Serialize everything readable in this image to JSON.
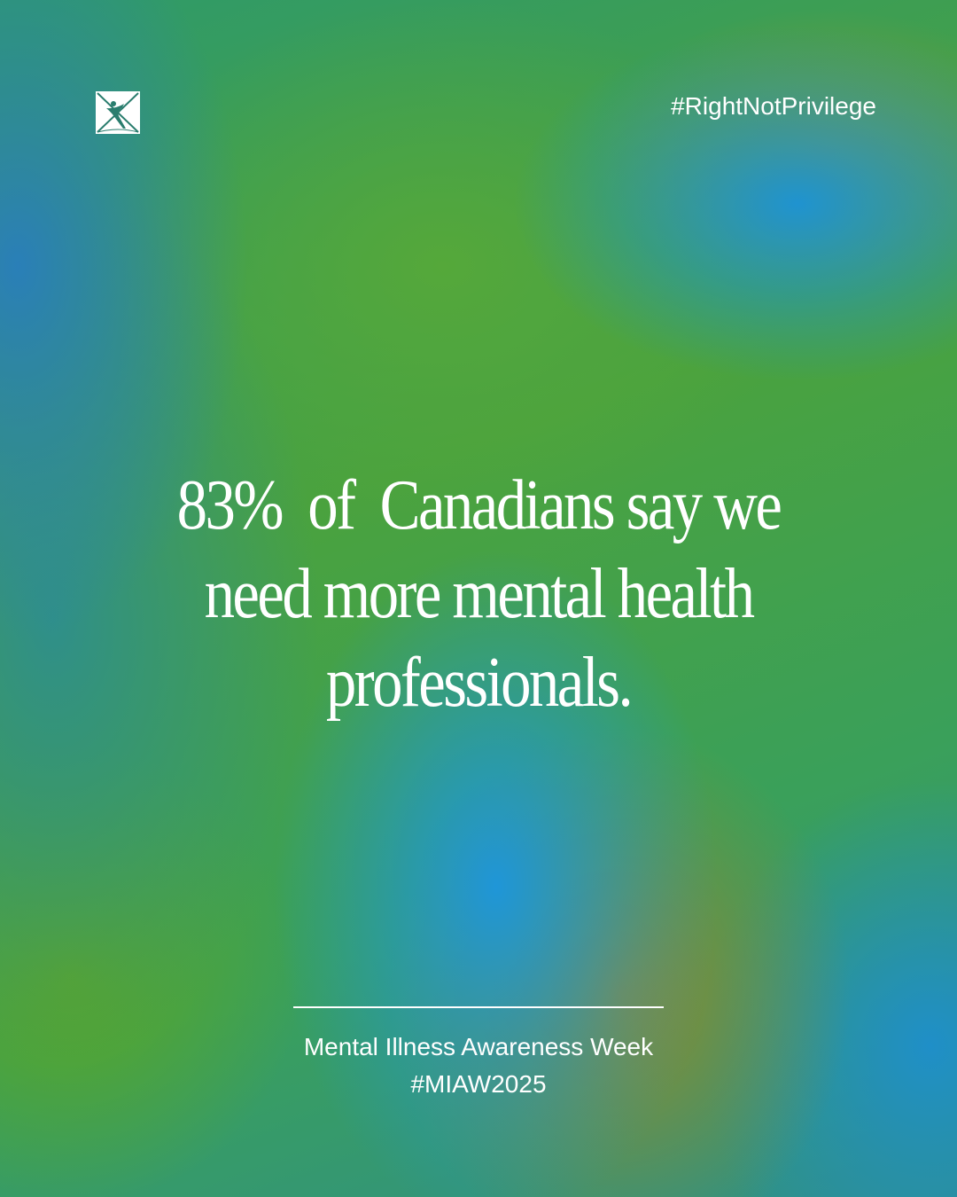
{
  "logo": {
    "icon": "x-figure-logo",
    "color": "#2a7d6e"
  },
  "hashtag_top": "#RightNotPrivilege",
  "headline": {
    "line1": "83%  of  Canadians say we",
    "line2": "need more mental health",
    "line3": "professionals."
  },
  "footer": {
    "line1": "Mental Illness Awareness Week",
    "line2": "#MIAW2025"
  }
}
